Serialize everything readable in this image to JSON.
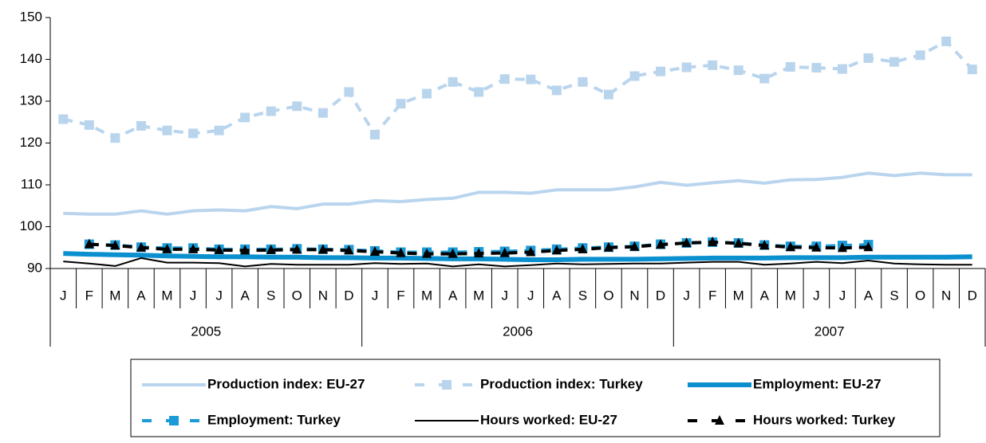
{
  "chart_data": {
    "type": "line",
    "categories": [
      "J",
      "F",
      "M",
      "A",
      "M",
      "J",
      "J",
      "A",
      "S",
      "O",
      "N",
      "D",
      "J",
      "F",
      "M",
      "A",
      "M",
      "J",
      "J",
      "A",
      "S",
      "O",
      "N",
      "D",
      "J",
      "F",
      "M",
      "A",
      "M",
      "J",
      "J",
      "A",
      "S",
      "O",
      "N",
      "D"
    ],
    "years": [
      "2005",
      "2006",
      "2007"
    ],
    "ylim": [
      90,
      150
    ],
    "yticks": [
      90,
      100,
      110,
      120,
      130,
      140,
      150
    ],
    "series": [
      {
        "name": "Production index: EU-27",
        "color": "#b9d5ee",
        "line_style": "solid",
        "weight": "thick",
        "marker": "none",
        "values": [
          103.2,
          103.0,
          103.0,
          103.8,
          103.0,
          103.8,
          104.0,
          103.8,
          104.8,
          104.3,
          105.4,
          105.4,
          106.2,
          106.0,
          106.5,
          106.8,
          108.2,
          108.2,
          108.0,
          108.8,
          108.8,
          108.8,
          109.5,
          110.6,
          109.9,
          110.5,
          111.0,
          110.4,
          111.2,
          111.3,
          111.8,
          112.8,
          112.2,
          112.8,
          112.4,
          112.4
        ]
      },
      {
        "name": "Production index: Turkey",
        "color": "#b9d5ee",
        "line_style": "dashed",
        "weight": "thick",
        "marker": "square",
        "values": [
          125.7,
          124.3,
          121.2,
          124.1,
          123.0,
          122.3,
          123.0,
          126.1,
          127.6,
          128.8,
          127.2,
          132.2,
          122.0,
          129.4,
          131.8,
          134.6,
          132.2,
          135.3,
          135.2,
          132.6,
          134.6,
          131.6,
          136.0,
          137.1,
          138.1,
          138.6,
          137.4,
          135.4,
          138.2,
          138.0,
          137.7,
          140.3,
          139.4,
          141.0,
          144.3,
          137.6
        ]
      },
      {
        "name": "Employment: EU-27",
        "color": "#0a8fcf",
        "line_style": "solid",
        "weight": "heavy",
        "marker": "none",
        "values": [
          93.6,
          93.4,
          93.3,
          93.2,
          93.0,
          92.9,
          92.8,
          92.8,
          92.7,
          92.7,
          92.6,
          92.6,
          92.5,
          92.5,
          92.4,
          92.3,
          92.3,
          92.2,
          92.1,
          92.1,
          92.2,
          92.2,
          92.2,
          92.3,
          92.4,
          92.5,
          92.5,
          92.5,
          92.6,
          92.6,
          92.6,
          92.7,
          92.7,
          92.7,
          92.7,
          92.8
        ]
      },
      {
        "name": "Employment: Turkey",
        "color": "#1a9bd7",
        "line_style": "dashed",
        "weight": "thick",
        "marker": "square",
        "values": [
          null,
          95.8,
          95.6,
          95.1,
          94.9,
          94.9,
          94.6,
          94.6,
          94.6,
          94.7,
          94.6,
          94.5,
          94.2,
          93.9,
          93.9,
          93.9,
          94.0,
          94.1,
          94.3,
          94.6,
          94.9,
          95.1,
          95.3,
          95.8,
          96.1,
          96.3,
          96.1,
          95.6,
          95.3,
          95.3,
          95.5,
          95.7,
          null,
          null,
          null,
          null
        ]
      },
      {
        "name": "Hours worked: EU-27",
        "color": "#000000",
        "line_style": "solid",
        "weight": "thin",
        "marker": "none",
        "values": [
          91.7,
          91.2,
          90.6,
          92.5,
          91.4,
          91.4,
          91.3,
          90.5,
          91.1,
          90.9,
          90.9,
          90.9,
          91.3,
          91.1,
          91.2,
          90.5,
          91.0,
          90.5,
          90.8,
          91.2,
          91.0,
          91.1,
          91.2,
          91.2,
          91.4,
          91.6,
          91.6,
          90.9,
          91.2,
          91.6,
          91.3,
          91.9,
          91.2,
          91.0,
          90.9,
          90.9
        ]
      },
      {
        "name": "Hours worked: Turkey",
        "color": "#000000",
        "line_style": "dashed",
        "weight": "thick",
        "marker": "triangle",
        "values": [
          null,
          95.8,
          95.5,
          95.0,
          94.6,
          94.6,
          94.4,
          94.3,
          94.4,
          94.5,
          94.5,
          94.3,
          94.0,
          93.7,
          93.5,
          93.5,
          93.6,
          93.7,
          93.9,
          94.3,
          94.6,
          95.0,
          95.2,
          95.7,
          96.1,
          96.3,
          96.0,
          95.5,
          95.1,
          95.0,
          94.9,
          95.1,
          null,
          null,
          null,
          null
        ]
      }
    ]
  }
}
